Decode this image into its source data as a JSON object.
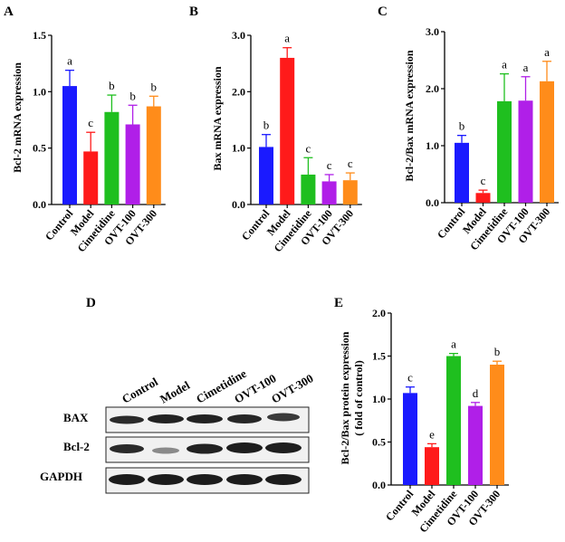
{
  "panels": [
    {
      "letter": "A",
      "ylabel": "Bcl-2 mRNA expression",
      "yticks": [
        "0.0",
        "0.5",
        "1.0",
        "1.5"
      ],
      "ylim": [
        0,
        1.5
      ]
    },
    {
      "letter": "B",
      "ylabel": "Bax mRNA expression",
      "yticks": [
        "0.0",
        "1.0",
        "2.0",
        "3.0"
      ],
      "ylim": [
        0,
        3.0
      ]
    },
    {
      "letter": "C",
      "ylabel": "Bcl-2/Bax mRNA expression",
      "yticks": [
        "0.0",
        "1.0",
        "2.0",
        "3.0"
      ],
      "ylim": [
        0,
        3.0
      ]
    },
    {
      "letter": "D"
    },
    {
      "letter": "E",
      "ylabel": "Bcl-2/Bax protein expression",
      "ylabel2": "( fold of control)",
      "yticks": [
        "0.0",
        "0.5",
        "1.0",
        "1.5",
        "2.0"
      ],
      "ylim": [
        0,
        2.0
      ]
    }
  ],
  "blot": {
    "lanes": [
      "Control",
      "Model",
      "Cimetidine",
      "OVT-100",
      "OVT-300"
    ],
    "rows": [
      "BAX",
      "Bcl-2",
      "GAPDH"
    ]
  },
  "colors": {
    "Control": "#1a1aff",
    "Model": "#ff1a1a",
    "Cimetidine": "#1fbf1f",
    "OVT-100": "#b01fe8",
    "OVT-300": "#ff8c1a"
  },
  "chart_data": [
    {
      "type": "bar",
      "categories": [
        "Control",
        "Model",
        "Cimetidine",
        "OVT-100",
        "OVT-300"
      ],
      "values": [
        1.05,
        0.47,
        0.82,
        0.71,
        0.87
      ],
      "errors": [
        0.14,
        0.17,
        0.15,
        0.17,
        0.09
      ],
      "labels": [
        "a",
        "c",
        "b",
        "b",
        "b"
      ],
      "ylabel": "Bcl-2 mRNA expression",
      "ylim": [
        0,
        1.5
      ]
    },
    {
      "type": "bar",
      "categories": [
        "Control",
        "Model",
        "Cimetidine",
        "OVT-100",
        "OVT-300"
      ],
      "values": [
        1.02,
        2.6,
        0.53,
        0.41,
        0.43
      ],
      "errors": [
        0.22,
        0.18,
        0.3,
        0.12,
        0.13
      ],
      "labels": [
        "b",
        "a",
        "c",
        "c",
        "c"
      ],
      "ylabel": "Bax mRNA expression",
      "ylim": [
        0,
        3.0
      ]
    },
    {
      "type": "bar",
      "categories": [
        "Control",
        "Model",
        "Cimetidine",
        "OVT-100",
        "OVT-300"
      ],
      "values": [
        1.05,
        0.17,
        1.78,
        1.79,
        2.13
      ],
      "errors": [
        0.13,
        0.05,
        0.48,
        0.42,
        0.35
      ],
      "labels": [
        "b",
        "c",
        "a",
        "a",
        "a"
      ],
      "ylabel": "Bcl-2/Bax mRNA expression",
      "ylim": [
        0,
        3.0
      ]
    },
    {
      "type": "bar",
      "categories": [
        "Control",
        "Model",
        "Cimetidine",
        "OVT-100",
        "OVT-300"
      ],
      "values": [
        1.07,
        0.44,
        1.5,
        0.92,
        1.4
      ],
      "errors": [
        0.07,
        0.04,
        0.03,
        0.04,
        0.04
      ],
      "labels": [
        "c",
        "e",
        "a",
        "d",
        "b"
      ],
      "ylabel": "Bcl-2/Bax protein expression ( fold of control)",
      "ylim": [
        0,
        2.0
      ]
    }
  ]
}
